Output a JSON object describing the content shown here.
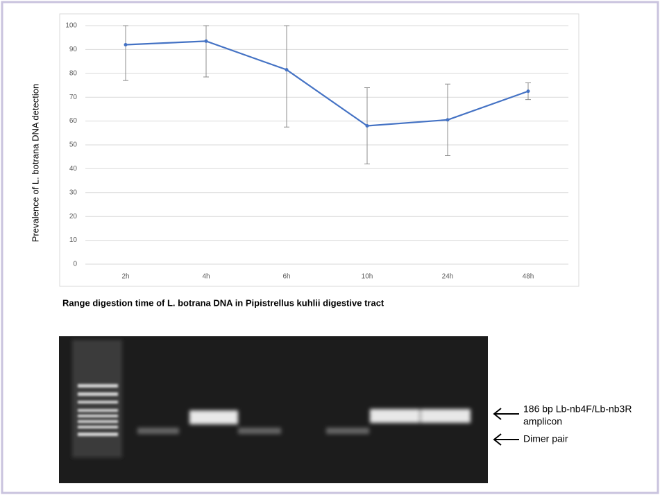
{
  "chart_data": {
    "type": "line",
    "ylabel": "Prevalence of L. botrana DNA detection",
    "xlabel": "Range digestion time of L. botrana DNA in Pipistrellus kuhlii digestive tract",
    "categories": [
      "2h",
      "4h",
      "6h",
      "10h",
      "24h",
      "48h"
    ],
    "series": [
      {
        "color": "#4472c4",
        "values": [
          92,
          93.5,
          81.5,
          58,
          60.5,
          72.5
        ],
        "errors": [
          15,
          15,
          24,
          16,
          15,
          3.5
        ]
      }
    ],
    "ylim": [
      0,
      100
    ],
    "yticks": [
      0,
      10,
      20,
      30,
      40,
      50,
      60,
      70,
      80,
      90,
      100
    ],
    "grid": true
  },
  "gel": {
    "annotations": [
      "186 bp Lb-nb4F/Lb-nb3R",
      "amplicon",
      "Dimer pair"
    ]
  }
}
